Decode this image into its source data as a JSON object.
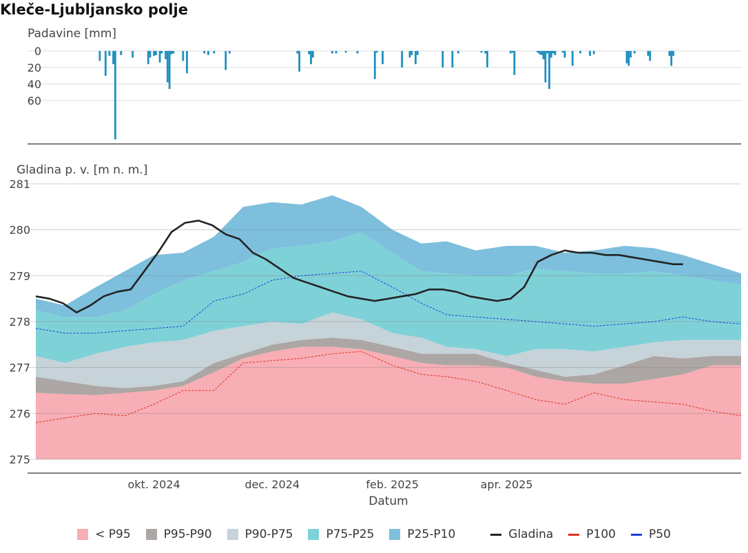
{
  "title": "Kleče-Ljubljansko polje",
  "chart_data": [
    {
      "type": "bar",
      "ylabel": "Padavine [mm]",
      "y_ticks": [
        "0",
        "20",
        "40",
        "60"
      ],
      "ylim": [
        0,
        110
      ],
      "y_reversed": true,
      "bar_color": "#1f8fc0",
      "values": [
        {
          "x": "2024-09-03",
          "y": 12
        },
        {
          "x": "2024-09-06",
          "y": 30
        },
        {
          "x": "2024-09-08",
          "y": 6
        },
        {
          "x": "2024-09-10",
          "y": 16
        },
        {
          "x": "2024-09-11",
          "y": 107
        },
        {
          "x": "2024-09-14",
          "y": 5
        },
        {
          "x": "2024-09-20",
          "y": 8
        },
        {
          "x": "2024-09-28",
          "y": 16
        },
        {
          "x": "2024-09-29",
          "y": 8
        },
        {
          "x": "2024-10-01",
          "y": 6
        },
        {
          "x": "2024-10-02",
          "y": 5
        },
        {
          "x": "2024-10-04",
          "y": 14
        },
        {
          "x": "2024-10-05",
          "y": 3
        },
        {
          "x": "2024-10-07",
          "y": 10
        },
        {
          "x": "2024-10-08",
          "y": 38
        },
        {
          "x": "2024-10-09",
          "y": 46
        },
        {
          "x": "2024-10-10",
          "y": 4
        },
        {
          "x": "2024-10-11",
          "y": 3
        },
        {
          "x": "2024-10-16",
          "y": 12
        },
        {
          "x": "2024-10-18",
          "y": 27
        },
        {
          "x": "2024-10-27",
          "y": 3
        },
        {
          "x": "2024-10-29",
          "y": 5
        },
        {
          "x": "2024-11-01",
          "y": 3
        },
        {
          "x": "2024-11-07",
          "y": 23
        },
        {
          "x": "2024-11-09",
          "y": 3
        },
        {
          "x": "2024-12-14",
          "y": 3
        },
        {
          "x": "2024-12-15",
          "y": 25
        },
        {
          "x": "2024-12-20",
          "y": 4
        },
        {
          "x": "2024-12-21",
          "y": 16
        },
        {
          "x": "2024-12-22",
          "y": 8
        },
        {
          "x": "2025-01-01",
          "y": 3
        },
        {
          "x": "2025-01-03",
          "y": 3
        },
        {
          "x": "2025-01-08",
          "y": 2
        },
        {
          "x": "2025-01-14",
          "y": 3
        },
        {
          "x": "2025-01-23",
          "y": 34
        },
        {
          "x": "2025-01-24",
          "y": 2
        },
        {
          "x": "2025-01-27",
          "y": 16
        },
        {
          "x": "2025-02-06",
          "y": 20
        },
        {
          "x": "2025-02-10",
          "y": 8
        },
        {
          "x": "2025-02-11",
          "y": 5
        },
        {
          "x": "2025-02-13",
          "y": 16
        },
        {
          "x": "2025-02-14",
          "y": 5
        },
        {
          "x": "2025-02-27",
          "y": 20
        },
        {
          "x": "2025-03-04",
          "y": 20
        },
        {
          "x": "2025-03-07",
          "y": 3
        },
        {
          "x": "2025-03-19",
          "y": 2
        },
        {
          "x": "2025-03-21",
          "y": 3
        },
        {
          "x": "2025-03-22",
          "y": 20
        },
        {
          "x": "2025-04-03",
          "y": 3
        },
        {
          "x": "2025-04-04",
          "y": 2
        },
        {
          "x": "2025-04-05",
          "y": 29
        },
        {
          "x": "2025-04-17",
          "y": 2
        },
        {
          "x": "2025-04-18",
          "y": 4
        },
        {
          "x": "2025-04-19",
          "y": 5
        },
        {
          "x": "2025-04-20",
          "y": 10
        },
        {
          "x": "2025-04-21",
          "y": 38
        },
        {
          "x": "2025-04-22",
          "y": 3
        },
        {
          "x": "2025-04-23",
          "y": 46
        },
        {
          "x": "2025-04-24",
          "y": 8
        },
        {
          "x": "2025-04-25",
          "y": 3
        },
        {
          "x": "2025-04-26",
          "y": 5
        },
        {
          "x": "2025-04-30",
          "y": 2
        },
        {
          "x": "2025-05-01",
          "y": 8
        },
        {
          "x": "2025-05-05",
          "y": 18
        },
        {
          "x": "2025-05-09",
          "y": 3
        },
        {
          "x": "2025-05-14",
          "y": 6
        },
        {
          "x": "2025-05-16",
          "y": 4
        },
        {
          "x": "2025-06-02",
          "y": 15
        },
        {
          "x": "2025-06-03",
          "y": 18
        },
        {
          "x": "2025-06-04",
          "y": 8
        },
        {
          "x": "2025-06-06",
          "y": 3
        },
        {
          "x": "2025-06-13",
          "y": 6
        },
        {
          "x": "2025-06-14",
          "y": 12
        },
        {
          "x": "2025-06-24",
          "y": 6
        },
        {
          "x": "2025-06-25",
          "y": 18
        },
        {
          "x": "2025-06-26",
          "y": 6
        }
      ]
    },
    {
      "type": "area",
      "ylabel": "Gladina p. v. [m n. m.]",
      "xlabel": "Datum",
      "ylim": [
        275,
        281
      ],
      "y_ticks": [
        "275",
        "276",
        "277",
        "278",
        "279",
        "280",
        "281"
      ],
      "x_range": [
        "2024-08-01",
        "2025-07-31"
      ],
      "x_ticks": [
        {
          "date": "2024-10-01",
          "label": "okt. 2024"
        },
        {
          "date": "2024-12-01",
          "label": "dec. 2024"
        },
        {
          "date": "2025-02-01",
          "label": "feb. 2025"
        },
        {
          "date": "2025-04-01",
          "label": "apr. 2025"
        }
      ],
      "band_x": [
        "2024-08-01",
        "2024-08-16",
        "2024-09-01",
        "2024-09-16",
        "2024-10-01",
        "2024-10-16",
        "2024-11-01",
        "2024-11-16",
        "2024-12-01",
        "2024-12-16",
        "2025-01-01",
        "2025-01-16",
        "2025-02-01",
        "2025-02-16",
        "2025-03-01",
        "2025-03-16",
        "2025-04-01",
        "2025-04-16",
        "2025-05-01",
        "2025-05-16",
        "2025-06-01",
        "2025-06-16",
        "2025-07-01",
        "2025-07-16",
        "2025-07-31"
      ],
      "bands": [
        {
          "name": "< P95",
          "color": "#f7aeb4",
          "lower": [
            275,
            275,
            275,
            275,
            275,
            275,
            275,
            275,
            275,
            275,
            275,
            275,
            275,
            275,
            275,
            275,
            275,
            275,
            275,
            275,
            275,
            275,
            275,
            275,
            275
          ],
          "upper": [
            276.45,
            276.42,
            276.4,
            276.45,
            276.5,
            276.6,
            276.9,
            277.2,
            277.35,
            277.45,
            277.45,
            277.4,
            277.25,
            277.1,
            277.05,
            277.05,
            277.0,
            276.8,
            276.7,
            276.65,
            276.65,
            276.75,
            276.85,
            277.05,
            277.05
          ]
        },
        {
          "name": "P95-P90",
          "color": "#aca6a4",
          "lower": [
            276.45,
            276.42,
            276.4,
            276.45,
            276.5,
            276.6,
            276.9,
            277.2,
            277.35,
            277.45,
            277.45,
            277.4,
            277.25,
            277.1,
            277.05,
            277.05,
            277.0,
            276.8,
            276.7,
            276.65,
            276.65,
            276.75,
            276.85,
            277.05,
            277.05
          ],
          "upper": [
            276.8,
            276.7,
            276.6,
            276.55,
            276.6,
            276.7,
            277.1,
            277.3,
            277.5,
            277.6,
            277.65,
            277.6,
            277.45,
            277.3,
            277.3,
            277.3,
            277.1,
            276.95,
            276.8,
            276.85,
            277.05,
            277.25,
            277.2,
            277.25,
            277.25
          ]
        },
        {
          "name": "P90-P75",
          "color": "#c6d3d9",
          "lower": [
            276.8,
            276.7,
            276.6,
            276.55,
            276.6,
            276.7,
            277.1,
            277.3,
            277.5,
            277.6,
            277.65,
            277.6,
            277.45,
            277.3,
            277.3,
            277.3,
            277.1,
            276.95,
            276.8,
            276.85,
            277.05,
            277.25,
            277.2,
            277.25,
            277.25
          ],
          "upper": [
            277.25,
            277.1,
            277.3,
            277.45,
            277.55,
            277.6,
            277.8,
            277.9,
            278.0,
            277.95,
            278.2,
            278.05,
            277.75,
            277.65,
            277.45,
            277.4,
            277.25,
            277.4,
            277.4,
            277.35,
            277.45,
            277.55,
            277.6,
            277.6,
            277.6
          ]
        },
        {
          "name": "P75-P25",
          "color": "#7fd1d8",
          "lower": [
            277.25,
            277.1,
            277.3,
            277.45,
            277.55,
            277.6,
            277.8,
            277.9,
            278.0,
            277.95,
            278.2,
            278.05,
            277.75,
            277.65,
            277.45,
            277.4,
            277.25,
            277.4,
            277.4,
            277.35,
            277.45,
            277.55,
            277.6,
            277.6,
            277.6
          ],
          "upper": [
            278.25,
            278.1,
            278.1,
            278.25,
            278.6,
            278.9,
            279.1,
            279.3,
            279.6,
            279.65,
            279.75,
            279.95,
            279.5,
            279.1,
            279.05,
            279.0,
            279.0,
            279.15,
            279.1,
            279.05,
            279.05,
            279.1,
            279.0,
            278.9,
            278.8
          ]
        },
        {
          "name": "P25-P10",
          "color": "#7dbfdc",
          "lower": [
            278.25,
            278.1,
            278.1,
            278.25,
            278.6,
            278.9,
            279.1,
            279.3,
            279.6,
            279.65,
            279.75,
            279.95,
            279.5,
            279.1,
            279.05,
            279.0,
            279.0,
            279.15,
            279.1,
            279.05,
            279.05,
            279.1,
            279.0,
            278.9,
            278.8
          ],
          "upper": [
            278.5,
            278.35,
            278.75,
            279.1,
            279.45,
            279.5,
            279.85,
            280.5,
            280.6,
            280.55,
            280.75,
            280.5,
            280.0,
            279.7,
            279.75,
            279.55,
            279.65,
            279.65,
            279.5,
            279.55,
            279.65,
            279.6,
            279.45,
            279.25,
            279.05
          ]
        }
      ],
      "lines": [
        {
          "name": "P50",
          "color": "#1f3fd6",
          "dash": true,
          "x": [
            "2024-08-01",
            "2024-08-16",
            "2024-09-01",
            "2024-09-16",
            "2024-10-01",
            "2024-10-16",
            "2024-11-01",
            "2024-11-16",
            "2024-12-01",
            "2024-12-16",
            "2025-01-01",
            "2025-01-16",
            "2025-02-01",
            "2025-02-16",
            "2025-03-01",
            "2025-03-16",
            "2025-04-01",
            "2025-04-16",
            "2025-05-01",
            "2025-05-16",
            "2025-06-01",
            "2025-06-16",
            "2025-07-01",
            "2025-07-16",
            "2025-07-31"
          ],
          "y": [
            277.85,
            277.75,
            277.75,
            277.8,
            277.85,
            277.9,
            278.45,
            278.6,
            278.9,
            279.0,
            279.05,
            279.1,
            278.75,
            278.4,
            278.15,
            278.1,
            278.05,
            278.0,
            277.95,
            277.9,
            277.95,
            278.0,
            278.1,
            278.0,
            277.95
          ]
        },
        {
          "name": "P100",
          "color": "#e0301e",
          "dash": true,
          "x": [
            "2024-08-01",
            "2024-08-16",
            "2024-09-01",
            "2024-09-16",
            "2024-10-01",
            "2024-10-16",
            "2024-11-01",
            "2024-11-16",
            "2024-12-01",
            "2024-12-16",
            "2025-01-01",
            "2025-01-16",
            "2025-02-01",
            "2025-02-16",
            "2025-03-01",
            "2025-03-16",
            "2025-04-01",
            "2025-04-16",
            "2025-05-01",
            "2025-05-16",
            "2025-06-01",
            "2025-06-16",
            "2025-07-01",
            "2025-07-16",
            "2025-07-31"
          ],
          "y": [
            275.8,
            275.9,
            276.0,
            275.95,
            276.2,
            276.5,
            276.5,
            277.1,
            277.15,
            277.2,
            277.3,
            277.35,
            277.05,
            276.85,
            276.8,
            276.7,
            276.5,
            276.3,
            276.2,
            276.45,
            276.3,
            276.25,
            276.2,
            276.05,
            275.95
          ]
        },
        {
          "name": "Gladina",
          "color": "#222222",
          "dash": false,
          "x": [
            "2024-08-01",
            "2024-08-08",
            "2024-08-15",
            "2024-08-22",
            "2024-08-29",
            "2024-09-05",
            "2024-09-12",
            "2024-09-19",
            "2024-09-26",
            "2024-10-03",
            "2024-10-10",
            "2024-10-17",
            "2024-10-24",
            "2024-10-31",
            "2024-11-07",
            "2024-11-14",
            "2024-11-21",
            "2024-11-28",
            "2024-12-05",
            "2024-12-12",
            "2024-12-19",
            "2024-12-26",
            "2025-01-02",
            "2025-01-09",
            "2025-01-16",
            "2025-01-23",
            "2025-01-30",
            "2025-02-06",
            "2025-02-13",
            "2025-02-20",
            "2025-02-27",
            "2025-03-06",
            "2025-03-13",
            "2025-03-20",
            "2025-03-27",
            "2025-04-03",
            "2025-04-10",
            "2025-04-17",
            "2025-04-24",
            "2025-05-01",
            "2025-05-08",
            "2025-05-15",
            "2025-05-22",
            "2025-05-29",
            "2025-06-05",
            "2025-06-12",
            "2025-06-19",
            "2025-06-26",
            "2025-07-01"
          ],
          "y": [
            278.55,
            278.5,
            278.4,
            278.2,
            278.35,
            278.55,
            278.65,
            278.7,
            279.1,
            279.5,
            279.95,
            280.15,
            280.2,
            280.1,
            279.9,
            279.8,
            279.5,
            279.35,
            279.15,
            278.95,
            278.85,
            278.75,
            278.65,
            278.55,
            278.5,
            278.45,
            278.5,
            278.55,
            278.6,
            278.7,
            278.7,
            278.65,
            278.55,
            278.5,
            278.45,
            278.5,
            278.75,
            279.3,
            279.45,
            279.55,
            279.5,
            279.5,
            279.45,
            279.45,
            279.4,
            279.35,
            279.3,
            279.25,
            279.25
          ]
        }
      ]
    }
  ],
  "legend": [
    {
      "label": "< P95",
      "kind": "swatch",
      "color": "#f7aeb4"
    },
    {
      "label": "P95-P90",
      "kind": "swatch",
      "color": "#aca6a4"
    },
    {
      "label": "P90-P75",
      "kind": "swatch",
      "color": "#c6d3d9"
    },
    {
      "label": "P75-P25",
      "kind": "swatch",
      "color": "#7fd1d8"
    },
    {
      "label": "P25-P10",
      "kind": "swatch",
      "color": "#7dbfdc"
    },
    {
      "label": "Gladina",
      "kind": "line",
      "color": "#222222"
    },
    {
      "label": "P100",
      "kind": "line",
      "color": "#e0301e"
    },
    {
      "label": "P50",
      "kind": "line",
      "color": "#1f3fd6"
    }
  ]
}
